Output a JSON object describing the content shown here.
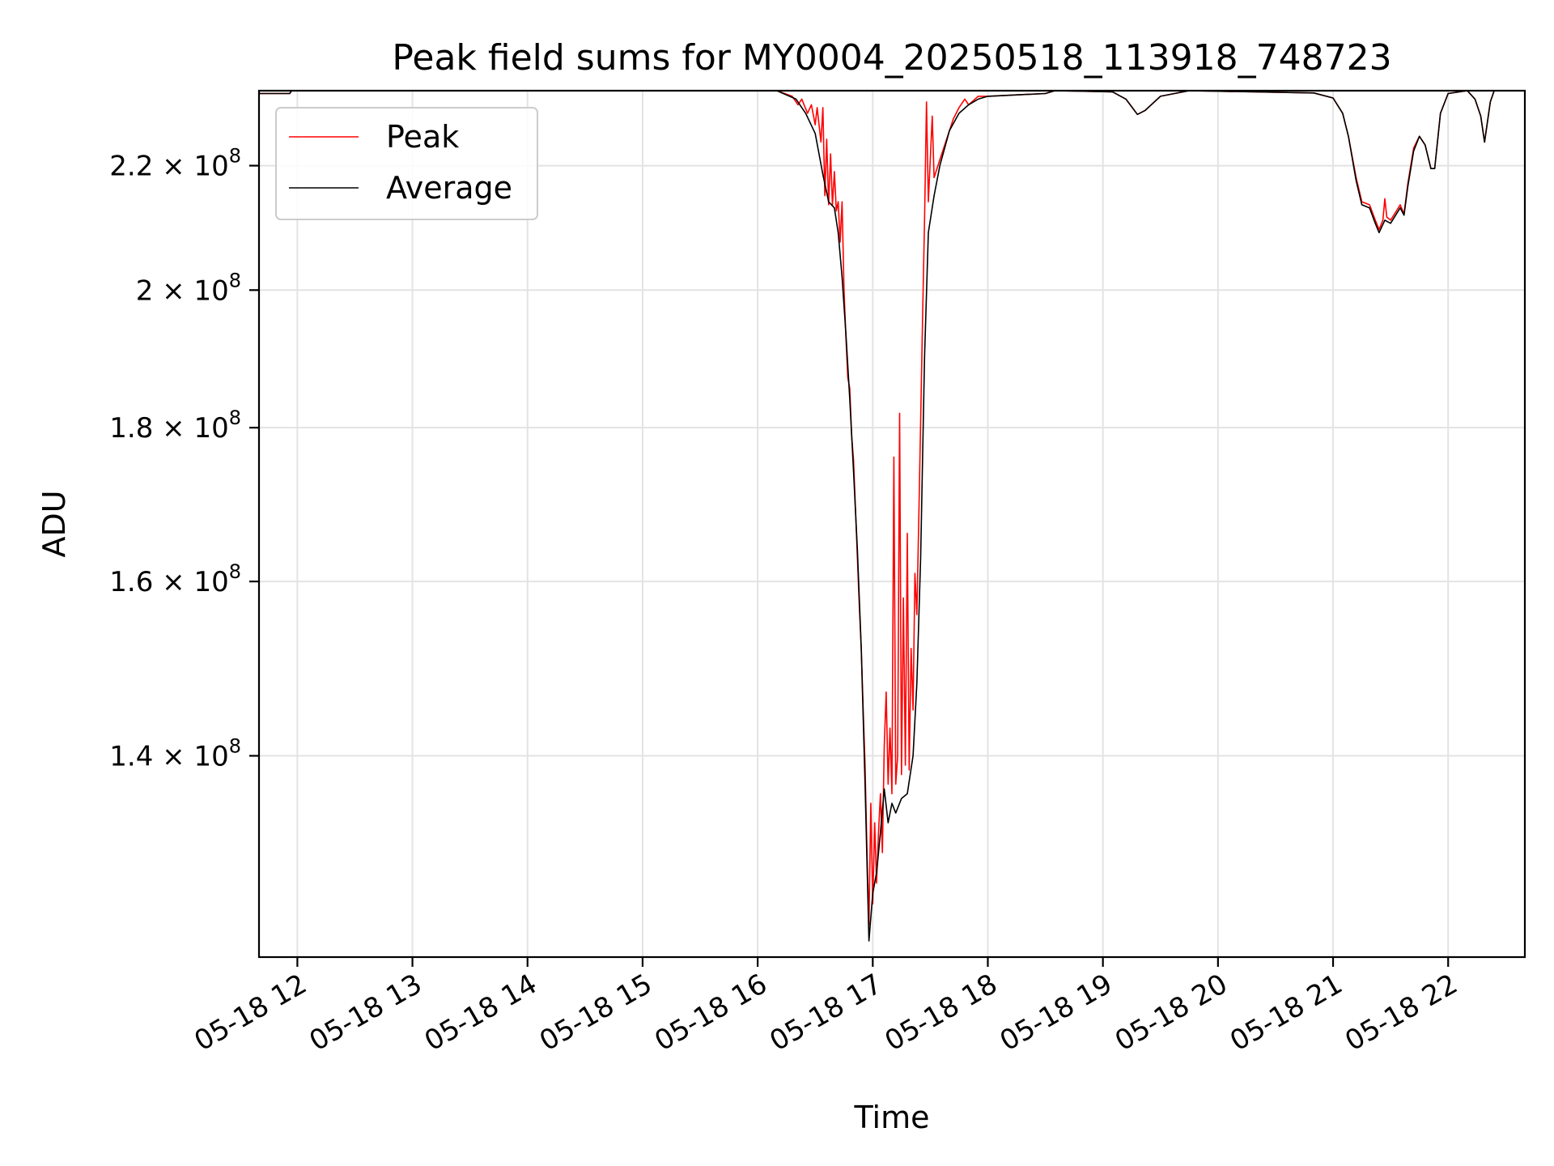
{
  "chart_data": {
    "type": "line",
    "title": "Peak field sums for MY0004_20250518_113918_748723",
    "xlabel": "Time",
    "ylabel": "ADU",
    "y_scale": "log",
    "grid": true,
    "legend_position": "upper-left",
    "xlim": [
      "2025-05-18 11:40",
      "2025-05-18 22:40"
    ],
    "ylim": [
      120000000,
      233000000
    ],
    "x_ticks": [
      {
        "t": "2025-05-18 12:00",
        "label": "05-18 12"
      },
      {
        "t": "2025-05-18 13:00",
        "label": "05-18 13"
      },
      {
        "t": "2025-05-18 14:00",
        "label": "05-18 14"
      },
      {
        "t": "2025-05-18 15:00",
        "label": "05-18 15"
      },
      {
        "t": "2025-05-18 16:00",
        "label": "05-18 16"
      },
      {
        "t": "2025-05-18 17:00",
        "label": "05-18 17"
      },
      {
        "t": "2025-05-18 18:00",
        "label": "05-18 18"
      },
      {
        "t": "2025-05-18 19:00",
        "label": "05-18 19"
      },
      {
        "t": "2025-05-18 20:00",
        "label": "05-18 20"
      },
      {
        "t": "2025-05-18 21:00",
        "label": "05-18 21"
      },
      {
        "t": "2025-05-18 22:00",
        "label": "05-18 22"
      }
    ],
    "y_ticks": [
      {
        "v": 140000000,
        "mant": "1.4",
        "exp": "8"
      },
      {
        "v": 160000000,
        "mant": "1.6",
        "exp": "8"
      },
      {
        "v": 180000000,
        "mant": "1.8",
        "exp": "8"
      },
      {
        "v": 200000000,
        "mant": "2",
        "exp": "8"
      },
      {
        "v": 220000000,
        "mant": "2.2",
        "exp": "8"
      }
    ],
    "series": [
      {
        "name": "Peak",
        "color": "#ff0000",
        "points": [
          [
            "2025-05-18 11:40",
            232500000
          ],
          [
            "2025-05-18 11:56",
            232500000
          ],
          [
            "2025-05-18 11:57",
            233000000
          ],
          [
            "2025-05-18 16:10",
            233000000
          ],
          [
            "2025-05-18 16:18",
            232000000
          ],
          [
            "2025-05-18 16:21",
            230500000
          ],
          [
            "2025-05-18 16:23",
            231500000
          ],
          [
            "2025-05-18 16:26",
            229000000
          ],
          [
            "2025-05-18 16:28",
            230500000
          ],
          [
            "2025-05-18 16:30",
            227000000
          ],
          [
            "2025-05-18 16:31",
            230000000
          ],
          [
            "2025-05-18 16:33",
            224000000
          ],
          [
            "2025-05-18 16:34",
            230000000
          ],
          [
            "2025-05-18 16:35",
            215000000
          ],
          [
            "2025-05-18 16:36",
            224500000
          ],
          [
            "2025-05-18 16:37",
            213500000
          ],
          [
            "2025-05-18 16:38",
            222000000
          ],
          [
            "2025-05-18 16:39",
            213500000
          ],
          [
            "2025-05-18 16:40",
            219000000
          ],
          [
            "2025-05-18 16:41",
            212500000
          ],
          [
            "2025-05-18 16:42",
            214000000
          ],
          [
            "2025-05-18 16:43",
            207500000
          ],
          [
            "2025-05-18 16:44",
            214000000
          ],
          [
            "2025-05-18 16:45",
            200000000
          ],
          [
            "2025-05-18 16:46",
            193000000
          ],
          [
            "2025-05-18 16:47",
            187000000
          ],
          [
            "2025-05-18 16:48",
            185500000
          ],
          [
            "2025-05-18 16:49",
            179000000
          ],
          [
            "2025-05-18 16:50",
            175500000
          ],
          [
            "2025-05-18 16:51",
            169000000
          ],
          [
            "2025-05-18 16:52",
            163000000
          ],
          [
            "2025-05-18 16:53",
            157000000
          ],
          [
            "2025-05-18 16:54",
            152000000
          ],
          [
            "2025-05-18 16:55",
            145000000
          ],
          [
            "2025-05-18 16:56",
            139000000
          ],
          [
            "2025-05-18 16:57",
            130000000
          ],
          [
            "2025-05-18 16:58",
            123000000
          ],
          [
            "2025-05-18 16:59",
            135000000
          ],
          [
            "2025-05-18 17:00",
            125000000
          ],
          [
            "2025-05-18 17:01",
            133000000
          ],
          [
            "2025-05-18 17:02",
            127000000
          ],
          [
            "2025-05-18 17:03",
            132000000
          ],
          [
            "2025-05-18 17:04",
            136000000
          ],
          [
            "2025-05-18 17:05",
            130000000
          ],
          [
            "2025-05-18 17:06",
            141000000
          ],
          [
            "2025-05-18 17:07",
            147000000
          ],
          [
            "2025-05-18 17:08",
            137000000
          ],
          [
            "2025-05-18 17:09",
            143000000
          ],
          [
            "2025-05-18 17:10",
            136000000
          ],
          [
            "2025-05-18 17:11",
            176000000
          ],
          [
            "2025-05-18 17:12",
            137000000
          ],
          [
            "2025-05-18 17:13",
            140000000
          ],
          [
            "2025-05-18 17:14",
            182000000
          ],
          [
            "2025-05-18 17:15",
            138000000
          ],
          [
            "2025-05-18 17:16",
            158000000
          ],
          [
            "2025-05-18 17:17",
            139000000
          ],
          [
            "2025-05-18 17:18",
            166000000
          ],
          [
            "2025-05-18 17:19",
            138500000
          ],
          [
            "2025-05-18 17:20",
            152000000
          ],
          [
            "2025-05-18 17:21",
            145000000
          ],
          [
            "2025-05-18 17:22",
            161000000
          ],
          [
            "2025-05-18 17:23",
            156000000
          ],
          [
            "2025-05-18 17:24",
            168000000
          ],
          [
            "2025-05-18 17:25",
            181000000
          ],
          [
            "2025-05-18 17:26",
            196000000
          ],
          [
            "2025-05-18 17:27",
            211000000
          ],
          [
            "2025-05-18 17:28",
            231000000
          ],
          [
            "2025-05-18 17:29",
            214000000
          ],
          [
            "2025-05-18 17:31",
            228500000
          ],
          [
            "2025-05-18 17:32",
            218000000
          ],
          [
            "2025-05-18 17:35",
            221000000
          ],
          [
            "2025-05-18 17:38",
            224000000
          ],
          [
            "2025-05-18 17:42",
            228000000
          ],
          [
            "2025-05-18 17:45",
            230000000
          ],
          [
            "2025-05-18 17:48",
            231500000
          ],
          [
            "2025-05-18 17:50",
            230500000
          ],
          [
            "2025-05-18 17:55",
            232000000
          ],
          [
            "2025-05-18 18:00",
            232000000
          ],
          [
            "2025-05-18 18:30",
            232500000
          ],
          [
            "2025-05-18 18:35",
            233000000
          ],
          [
            "2025-05-18 19:05",
            232800000
          ],
          [
            "2025-05-18 19:12",
            231500000
          ],
          [
            "2025-05-18 19:18",
            228800000
          ],
          [
            "2025-05-18 19:22",
            229500000
          ],
          [
            "2025-05-18 19:30",
            232000000
          ],
          [
            "2025-05-18 19:45",
            233000000
          ],
          [
            "2025-05-18 20:50",
            232600000
          ],
          [
            "2025-05-18 21:00",
            231700000
          ],
          [
            "2025-05-18 21:05",
            229000000
          ],
          [
            "2025-05-18 21:08",
            225000000
          ],
          [
            "2025-05-18 21:12",
            218000000
          ],
          [
            "2025-05-18 21:15",
            214000000
          ],
          [
            "2025-05-18 21:19",
            213500000
          ],
          [
            "2025-05-18 21:22",
            211000000
          ],
          [
            "2025-05-18 21:24",
            209500000
          ],
          [
            "2025-05-18 21:26",
            211000000
          ],
          [
            "2025-05-18 21:27",
            214500000
          ],
          [
            "2025-05-18 21:28",
            211500000
          ],
          [
            "2025-05-18 21:30",
            211000000
          ],
          [
            "2025-05-18 21:32",
            212000000
          ],
          [
            "2025-05-18 21:35",
            213500000
          ],
          [
            "2025-05-18 21:37",
            212000000
          ],
          [
            "2025-05-18 21:39",
            217000000
          ],
          [
            "2025-05-18 21:42",
            223000000
          ],
          [
            "2025-05-18 21:45",
            225000000
          ],
          [
            "2025-05-18 21:48",
            223500000
          ],
          [
            "2025-05-18 21:51",
            219500000
          ],
          [
            "2025-05-18 21:53",
            219500000
          ],
          [
            "2025-05-18 21:56",
            229000000
          ],
          [
            "2025-05-18 22:00",
            232500000
          ],
          [
            "2025-05-18 22:10",
            233000000
          ],
          [
            "2025-05-18 22:14",
            231500000
          ],
          [
            "2025-05-18 22:17",
            228500000
          ],
          [
            "2025-05-18 22:19",
            224000000
          ],
          [
            "2025-05-18 22:22",
            231000000
          ],
          [
            "2025-05-18 22:24",
            233000000
          ],
          [
            "2025-05-18 22:40",
            233000000
          ]
        ]
      },
      {
        "name": "Average",
        "color": "#000000",
        "points": [
          [
            "2025-05-18 11:40",
            232500000
          ],
          [
            "2025-05-18 11:56",
            232500000
          ],
          [
            "2025-05-18 11:57",
            233000000
          ],
          [
            "2025-05-18 16:10",
            233000000
          ],
          [
            "2025-05-18 16:20",
            231500000
          ],
          [
            "2025-05-18 16:25",
            229000000
          ],
          [
            "2025-05-18 16:30",
            225500000
          ],
          [
            "2025-05-18 16:34",
            218500000
          ],
          [
            "2025-05-18 16:37",
            214000000
          ],
          [
            "2025-05-18 16:40",
            213000000
          ],
          [
            "2025-05-18 16:42",
            209000000
          ],
          [
            "2025-05-18 16:44",
            202000000
          ],
          [
            "2025-05-18 16:46",
            193500000
          ],
          [
            "2025-05-18 16:48",
            184000000
          ],
          [
            "2025-05-18 16:50",
            174000000
          ],
          [
            "2025-05-18 16:52",
            164000000
          ],
          [
            "2025-05-18 16:54",
            152000000
          ],
          [
            "2025-05-18 16:56",
            137000000
          ],
          [
            "2025-05-18 16:58",
            121500000
          ],
          [
            "2025-05-18 17:00",
            126000000
          ],
          [
            "2025-05-18 17:02",
            128000000
          ],
          [
            "2025-05-18 17:04",
            132000000
          ],
          [
            "2025-05-18 17:06",
            136500000
          ],
          [
            "2025-05-18 17:08",
            133000000
          ],
          [
            "2025-05-18 17:10",
            135000000
          ],
          [
            "2025-05-18 17:12",
            134000000
          ],
          [
            "2025-05-18 17:15",
            135500000
          ],
          [
            "2025-05-18 17:18",
            136000000
          ],
          [
            "2025-05-18 17:21",
            140000000
          ],
          [
            "2025-05-18 17:23",
            148000000
          ],
          [
            "2025-05-18 17:25",
            163000000
          ],
          [
            "2025-05-18 17:27",
            190000000
          ],
          [
            "2025-05-18 17:29",
            209000000
          ],
          [
            "2025-05-18 17:32",
            215000000
          ],
          [
            "2025-05-18 17:35",
            220000000
          ],
          [
            "2025-05-18 17:40",
            226000000
          ],
          [
            "2025-05-18 17:45",
            229000000
          ],
          [
            "2025-05-18 17:50",
            230500000
          ],
          [
            "2025-05-18 17:55",
            231500000
          ],
          [
            "2025-05-18 18:00",
            232000000
          ],
          [
            "2025-05-18 18:30",
            232500000
          ],
          [
            "2025-05-18 18:35",
            233000000
          ],
          [
            "2025-05-18 19:05",
            232800000
          ],
          [
            "2025-05-18 19:12",
            231500000
          ],
          [
            "2025-05-18 19:18",
            228800000
          ],
          [
            "2025-05-18 19:22",
            229500000
          ],
          [
            "2025-05-18 19:30",
            232000000
          ],
          [
            "2025-05-18 19:45",
            233000000
          ],
          [
            "2025-05-18 20:50",
            232600000
          ],
          [
            "2025-05-18 21:00",
            231700000
          ],
          [
            "2025-05-18 21:05",
            229000000
          ],
          [
            "2025-05-18 21:08",
            225000000
          ],
          [
            "2025-05-18 21:12",
            217500000
          ],
          [
            "2025-05-18 21:15",
            213500000
          ],
          [
            "2025-05-18 21:19",
            213000000
          ],
          [
            "2025-05-18 21:22",
            210500000
          ],
          [
            "2025-05-18 21:24",
            209000000
          ],
          [
            "2025-05-18 21:27",
            211000000
          ],
          [
            "2025-05-18 21:30",
            210500000
          ],
          [
            "2025-05-18 21:32",
            211500000
          ],
          [
            "2025-05-18 21:35",
            213000000
          ],
          [
            "2025-05-18 21:37",
            211800000
          ],
          [
            "2025-05-18 21:39",
            216500000
          ],
          [
            "2025-05-18 21:42",
            222500000
          ],
          [
            "2025-05-18 21:45",
            225000000
          ],
          [
            "2025-05-18 21:48",
            223500000
          ],
          [
            "2025-05-18 21:51",
            219500000
          ],
          [
            "2025-05-18 21:53",
            219500000
          ],
          [
            "2025-05-18 21:56",
            229000000
          ],
          [
            "2025-05-18 22:00",
            232500000
          ],
          [
            "2025-05-18 22:10",
            233000000
          ],
          [
            "2025-05-18 22:14",
            231500000
          ],
          [
            "2025-05-18 22:17",
            228500000
          ],
          [
            "2025-05-18 22:19",
            224000000
          ],
          [
            "2025-05-18 22:22",
            231000000
          ],
          [
            "2025-05-18 22:24",
            233000000
          ],
          [
            "2025-05-18 22:40",
            233000000
          ]
        ]
      }
    ]
  }
}
